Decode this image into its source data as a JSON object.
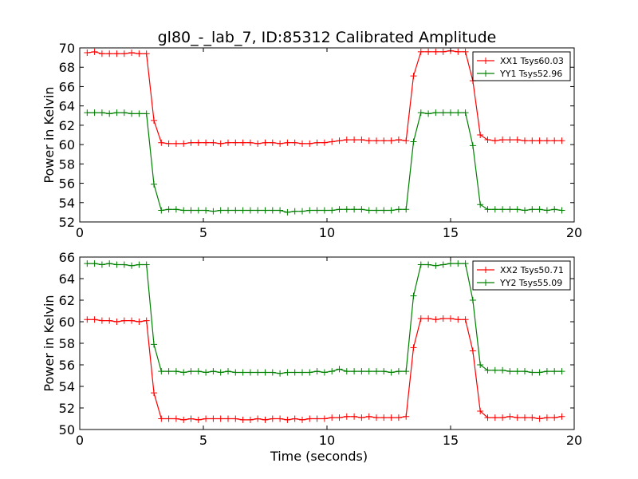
{
  "figure": {
    "title": "gl80_-_lab_7, ID:85312 Calibrated Amplitude"
  },
  "chart_data": [
    {
      "type": "line",
      "title": "gl80_-_lab_7, ID:85312 Calibrated Amplitude",
      "xlabel": "",
      "ylabel": "Power in Kelvin",
      "xlim": [
        0,
        20
      ],
      "ylim": [
        52,
        70
      ],
      "xticks": [
        0,
        5,
        10,
        15,
        20
      ],
      "yticks": [
        52,
        54,
        56,
        58,
        60,
        62,
        64,
        66,
        68,
        70
      ],
      "grid": false,
      "legend_position": "top-right",
      "x": [
        0.3,
        0.6,
        0.9,
        1.2,
        1.5,
        1.8,
        2.1,
        2.4,
        2.7,
        3.0,
        3.3,
        3.6,
        3.9,
        4.2,
        4.5,
        4.8,
        5.1,
        5.4,
        5.7,
        6.0,
        6.3,
        6.6,
        6.9,
        7.2,
        7.5,
        7.8,
        8.1,
        8.4,
        8.7,
        9.0,
        9.3,
        9.6,
        9.9,
        10.2,
        10.5,
        10.8,
        11.1,
        11.4,
        11.7,
        12.0,
        12.3,
        12.6,
        12.9,
        13.2,
        13.5,
        13.8,
        14.1,
        14.4,
        14.7,
        15.0,
        15.3,
        15.6,
        15.9,
        16.2,
        16.5,
        16.8,
        17.1,
        17.4,
        17.7,
        18.0,
        18.3,
        18.6,
        18.9,
        19.2,
        19.5
      ],
      "series": [
        {
          "name": "XX1 Tsys60.03",
          "color": "#ff0000",
          "values": [
            69.5,
            69.6,
            69.4,
            69.4,
            69.4,
            69.4,
            69.5,
            69.4,
            69.4,
            62.5,
            60.2,
            60.1,
            60.1,
            60.1,
            60.2,
            60.2,
            60.2,
            60.2,
            60.1,
            60.2,
            60.2,
            60.2,
            60.2,
            60.1,
            60.2,
            60.2,
            60.1,
            60.2,
            60.2,
            60.1,
            60.1,
            60.2,
            60.2,
            60.3,
            60.4,
            60.5,
            60.5,
            60.5,
            60.4,
            60.4,
            60.4,
            60.4,
            60.5,
            60.4,
            67.1,
            69.6,
            69.6,
            69.6,
            69.6,
            69.7,
            69.6,
            69.6,
            66.6,
            61.0,
            60.5,
            60.4,
            60.5,
            60.5,
            60.5,
            60.4,
            60.4,
            60.4,
            60.4,
            60.4,
            60.4
          ]
        },
        {
          "name": "YY1 Tsys52.96",
          "color": "#008000",
          "values": [
            63.3,
            63.3,
            63.3,
            63.2,
            63.3,
            63.3,
            63.2,
            63.2,
            63.2,
            55.9,
            53.2,
            53.3,
            53.3,
            53.2,
            53.2,
            53.2,
            53.2,
            53.1,
            53.2,
            53.2,
            53.2,
            53.2,
            53.2,
            53.2,
            53.2,
            53.2,
            53.2,
            53.0,
            53.1,
            53.1,
            53.2,
            53.2,
            53.2,
            53.2,
            53.3,
            53.3,
            53.3,
            53.3,
            53.2,
            53.2,
            53.2,
            53.2,
            53.3,
            53.3,
            60.3,
            63.3,
            63.2,
            63.3,
            63.3,
            63.3,
            63.3,
            63.3,
            59.9,
            53.8,
            53.3,
            53.3,
            53.3,
            53.3,
            53.3,
            53.2,
            53.3,
            53.3,
            53.2,
            53.3,
            53.2
          ]
        }
      ]
    },
    {
      "type": "line",
      "title": "",
      "xlabel": "Time (seconds)",
      "ylabel": "Power in Kelvin",
      "xlim": [
        0,
        20
      ],
      "ylim": [
        50,
        66
      ],
      "xticks": [
        0,
        5,
        10,
        15,
        20
      ],
      "yticks": [
        50,
        52,
        54,
        56,
        58,
        60,
        62,
        64,
        66
      ],
      "grid": false,
      "legend_position": "top-right",
      "x": [
        0.3,
        0.6,
        0.9,
        1.2,
        1.5,
        1.8,
        2.1,
        2.4,
        2.7,
        3.0,
        3.3,
        3.6,
        3.9,
        4.2,
        4.5,
        4.8,
        5.1,
        5.4,
        5.7,
        6.0,
        6.3,
        6.6,
        6.9,
        7.2,
        7.5,
        7.8,
        8.1,
        8.4,
        8.7,
        9.0,
        9.3,
        9.6,
        9.9,
        10.2,
        10.5,
        10.8,
        11.1,
        11.4,
        11.7,
        12.0,
        12.3,
        12.6,
        12.9,
        13.2,
        13.5,
        13.8,
        14.1,
        14.4,
        14.7,
        15.0,
        15.3,
        15.6,
        15.9,
        16.2,
        16.5,
        16.8,
        17.1,
        17.4,
        17.7,
        18.0,
        18.3,
        18.6,
        18.9,
        19.2,
        19.5
      ],
      "series": [
        {
          "name": "XX2 Tsys50.71",
          "color": "#ff0000",
          "values": [
            60.2,
            60.2,
            60.1,
            60.1,
            60.0,
            60.1,
            60.1,
            60.0,
            60.1,
            53.4,
            51.0,
            51.0,
            51.0,
            50.9,
            51.0,
            50.9,
            51.0,
            51.0,
            51.0,
            51.0,
            51.0,
            50.9,
            50.9,
            51.0,
            50.9,
            51.0,
            51.0,
            50.9,
            51.0,
            50.9,
            51.0,
            51.0,
            51.0,
            51.1,
            51.1,
            51.2,
            51.2,
            51.1,
            51.2,
            51.1,
            51.1,
            51.1,
            51.1,
            51.2,
            57.6,
            60.3,
            60.3,
            60.2,
            60.3,
            60.3,
            60.2,
            60.2,
            57.3,
            51.7,
            51.1,
            51.1,
            51.1,
            51.2,
            51.1,
            51.1,
            51.1,
            51.0,
            51.1,
            51.1,
            51.2
          ]
        },
        {
          "name": "YY2 Tsys55.09",
          "color": "#008000",
          "values": [
            65.4,
            65.4,
            65.3,
            65.4,
            65.3,
            65.3,
            65.2,
            65.3,
            65.3,
            57.9,
            55.4,
            55.4,
            55.4,
            55.3,
            55.4,
            55.4,
            55.3,
            55.4,
            55.3,
            55.4,
            55.3,
            55.3,
            55.3,
            55.3,
            55.3,
            55.3,
            55.2,
            55.3,
            55.3,
            55.3,
            55.3,
            55.4,
            55.3,
            55.4,
            55.6,
            55.4,
            55.4,
            55.4,
            55.4,
            55.4,
            55.4,
            55.3,
            55.4,
            55.4,
            62.4,
            65.3,
            65.3,
            65.2,
            65.3,
            65.4,
            65.4,
            65.4,
            62.0,
            56.0,
            55.5,
            55.5,
            55.5,
            55.4,
            55.4,
            55.4,
            55.3,
            55.3,
            55.4,
            55.4,
            55.4
          ]
        }
      ]
    }
  ]
}
